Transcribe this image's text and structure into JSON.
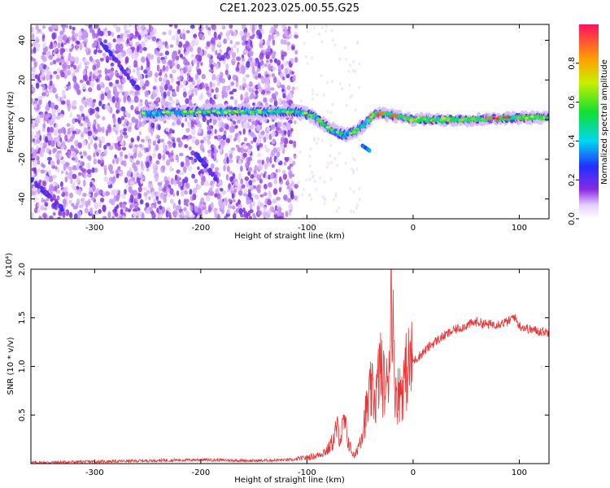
{
  "title": "C2E1.2023.025.00.55.G25",
  "chart_data": [
    {
      "type": "heatmap",
      "title": "C2E1.2023.025.00.55.G25",
      "xlabel": "Height of straight line (km)",
      "ylabel": "Frequency (Hz)",
      "xlim": [
        -360,
        128
      ],
      "ylim": [
        -50,
        48
      ],
      "x_ticks": [
        -300,
        -200,
        -100,
        0,
        100
      ],
      "y_ticks": [
        -40,
        -20,
        0,
        20,
        40
      ],
      "x_tick_labels": [
        "-300",
        "-200",
        "-100",
        "0",
        "100"
      ],
      "y_tick_labels": [
        "-40",
        "-20",
        "0",
        "20",
        "40"
      ],
      "colorbar": {
        "label": "Normalized spectral amplitude",
        "range": [
          0,
          1
        ],
        "ticks": [
          0.0,
          0.2,
          0.4,
          0.6,
          0.8
        ],
        "tick_labels": [
          "0.0",
          "0.2",
          "0.4",
          "0.6",
          "0.8"
        ],
        "colormap": "rainbow (white - purple - blue - cyan - green - yellow - red)"
      },
      "features": {
        "noise_region_x": [
          -360,
          -110
        ],
        "main_ridge": [
          [
            -255,
            3
          ],
          [
            -200,
            4
          ],
          [
            -150,
            4
          ],
          [
            -110,
            4
          ],
          [
            -95,
            2
          ],
          [
            -80,
            -4
          ],
          [
            -65,
            -8
          ],
          [
            -55,
            -6
          ],
          [
            -45,
            -2
          ],
          [
            -38,
            2
          ],
          [
            -30,
            3
          ],
          [
            -20,
            2
          ],
          [
            0,
            0
          ],
          [
            50,
            0
          ],
          [
            100,
            1
          ],
          [
            128,
            1
          ]
        ],
        "secondary_branch": [
          [
            -48,
            -13
          ],
          [
            -40,
            -16
          ]
        ],
        "diagonal_streaks": [
          [
            [
              -295,
              40
            ],
            [
              -258,
              15
            ]
          ],
          [
            [
              -205,
              -17
            ],
            [
              -185,
              -30
            ]
          ],
          [
            [
              -360,
              -30
            ],
            [
              -330,
              -45
            ]
          ]
        ]
      },
      "grid": false
    },
    {
      "type": "line",
      "title": "",
      "xlabel": "Height of straight line (km)",
      "ylabel": "SNR (10 * v/v)",
      "y_scale_label": "(x10⁴)",
      "xlim": [
        -360,
        128
      ],
      "ylim": [
        0,
        2.0
      ],
      "x_ticks": [
        -300,
        -200,
        -100,
        0,
        100
      ],
      "y_ticks": [
        0.5,
        1.0,
        1.5,
        2.0
      ],
      "x_tick_labels": [
        "-300",
        "-200",
        "-100",
        "0",
        "100"
      ],
      "y_tick_labels": [
        "0.5",
        "1.0",
        "1.5",
        "2.0"
      ],
      "series": [
        {
          "color": "#ee3333",
          "points": [
            [
              -360,
              0.01
            ],
            [
              -300,
              0.02
            ],
            [
              -250,
              0.03
            ],
            [
              -200,
              0.04
            ],
            [
              -150,
              0.03
            ],
            [
              -110,
              0.04
            ],
            [
              -100,
              0.05
            ],
            [
              -90,
              0.07
            ],
            [
              -80,
              0.12
            ],
            [
              -75,
              0.2
            ],
            [
              -72,
              0.3
            ],
            [
              -68,
              0.22
            ],
            [
              -65,
              0.35
            ],
            [
              -60,
              0.15
            ],
            [
              -55,
              0.05
            ],
            [
              -50,
              0.2
            ],
            [
              -45,
              0.4
            ],
            [
              -40,
              0.6
            ],
            [
              -35,
              0.55
            ],
            [
              -30,
              0.9
            ],
            [
              -25,
              0.75
            ],
            [
              -22,
              1.2
            ],
            [
              -20,
              2.0
            ],
            [
              -18,
              0.9
            ],
            [
              -15,
              0.7
            ],
            [
              -10,
              0.8
            ],
            [
              -5,
              1.0
            ],
            [
              0,
              1.05
            ],
            [
              10,
              1.15
            ],
            [
              20,
              1.25
            ],
            [
              30,
              1.32
            ],
            [
              40,
              1.38
            ],
            [
              50,
              1.42
            ],
            [
              60,
              1.46
            ],
            [
              70,
              1.43
            ],
            [
              80,
              1.44
            ],
            [
              90,
              1.46
            ],
            [
              95,
              1.52
            ],
            [
              100,
              1.42
            ],
            [
              110,
              1.38
            ],
            [
              120,
              1.36
            ],
            [
              128,
              1.35
            ]
          ]
        }
      ],
      "grid": false
    }
  ]
}
